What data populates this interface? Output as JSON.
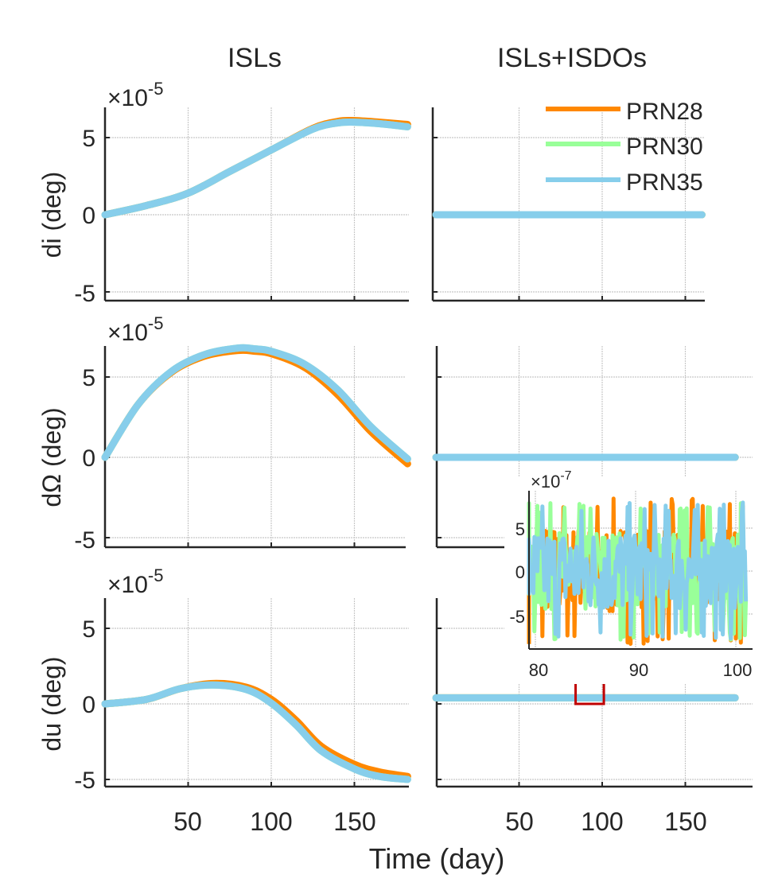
{
  "chart_data": [
    {
      "type": "line",
      "panel": "row1-left",
      "title": "ISLs",
      "xlabel": "",
      "ylabel": "di (deg)",
      "y_exponent_label": "×10^-5",
      "xlim": [
        0,
        182
      ],
      "ylim": [
        -5.2,
        7
      ],
      "yticks": [
        -5,
        0,
        5
      ],
      "xticks": [
        50,
        100,
        150
      ],
      "show_xtick_labels": false,
      "grid": true,
      "series": [
        {
          "name": "PRN28",
          "x": [
            0,
            25,
            50,
            75,
            100,
            125,
            140,
            150,
            165,
            182
          ],
          "values": [
            0,
            0.6,
            1.4,
            2.8,
            4.2,
            5.6,
            6.05,
            6.1,
            6.0,
            5.85
          ]
        },
        {
          "name": "PRN30",
          "x": [
            0,
            25,
            50,
            75,
            100,
            125,
            140,
            150,
            165,
            182
          ],
          "values": [
            0,
            0.6,
            1.4,
            2.8,
            4.2,
            5.55,
            5.95,
            6.0,
            5.9,
            5.7
          ]
        },
        {
          "name": "PRN35",
          "x": [
            0,
            25,
            50,
            75,
            100,
            125,
            140,
            150,
            165,
            182
          ],
          "values": [
            0,
            0.6,
            1.4,
            2.8,
            4.2,
            5.55,
            5.95,
            6.0,
            5.9,
            5.7
          ]
        }
      ]
    },
    {
      "type": "line",
      "panel": "row1-right",
      "title": "ISLs+ISDOs",
      "ylabel": "",
      "xlim": [
        0,
        182
      ],
      "ylim": [
        -5.2,
        7
      ],
      "yticks": [
        -5,
        0,
        5
      ],
      "xticks": [
        50,
        100,
        150
      ],
      "show_xtick_labels": false,
      "show_ytick_labels": false,
      "grid": true,
      "series": [
        {
          "name": "PRN28",
          "x": [
            0,
            160
          ],
          "values": [
            0,
            0
          ]
        },
        {
          "name": "PRN30",
          "x": [
            0,
            160
          ],
          "values": [
            0,
            0
          ]
        },
        {
          "name": "PRN35",
          "x": [
            0,
            160
          ],
          "values": [
            0,
            0
          ]
        }
      ]
    },
    {
      "type": "line",
      "panel": "row2-left",
      "ylabel": "dΩ (deg)",
      "y_exponent_label": "×10^-5",
      "xlim": [
        0,
        182
      ],
      "ylim": [
        -5.2,
        7
      ],
      "yticks": [
        -5,
        0,
        5
      ],
      "xticks": [
        50,
        100,
        150
      ],
      "show_xtick_labels": false,
      "grid": true,
      "series": [
        {
          "name": "PRN28",
          "x": [
            0,
            20,
            40,
            60,
            80,
            90,
            100,
            120,
            140,
            160,
            182
          ],
          "values": [
            0,
            3.3,
            5.3,
            6.3,
            6.65,
            6.6,
            6.45,
            5.6,
            3.9,
            1.6,
            -0.4
          ]
        },
        {
          "name": "PRN30",
          "x": [
            0,
            20,
            40,
            60,
            80,
            90,
            100,
            120,
            140,
            160,
            182
          ],
          "values": [
            0,
            3.3,
            5.35,
            6.4,
            6.8,
            6.75,
            6.6,
            5.8,
            4.2,
            1.9,
            -0.1
          ]
        },
        {
          "name": "PRN35",
          "x": [
            0,
            20,
            40,
            60,
            80,
            90,
            100,
            120,
            140,
            160,
            182
          ],
          "values": [
            0,
            3.3,
            5.35,
            6.4,
            6.8,
            6.75,
            6.6,
            5.8,
            4.2,
            1.9,
            -0.1
          ]
        }
      ]
    },
    {
      "type": "line",
      "panel": "row2-right",
      "ylabel": "",
      "xlim": [
        0,
        182
      ],
      "ylim": [
        -5.2,
        7
      ],
      "yticks": [
        -5,
        0,
        5
      ],
      "xticks": [
        50,
        100,
        150
      ],
      "show_xtick_labels": false,
      "show_ytick_labels": false,
      "grid": true,
      "series": [
        {
          "name": "PRN28",
          "x": [
            0,
            180
          ],
          "values": [
            0,
            0
          ]
        },
        {
          "name": "PRN30",
          "x": [
            0,
            180
          ],
          "values": [
            0,
            0
          ]
        },
        {
          "name": "PRN35",
          "x": [
            0,
            180
          ],
          "values": [
            0,
            0
          ]
        }
      ]
    },
    {
      "type": "line",
      "panel": "row3-left",
      "xlabel": "",
      "ylabel": "du (deg)",
      "y_exponent_label": "×10^-5",
      "xlim": [
        0,
        182
      ],
      "ylim": [
        -5.2,
        7
      ],
      "yticks": [
        -5,
        0,
        5
      ],
      "xticks": [
        50,
        100,
        150
      ],
      "xtick_labels": [
        "50",
        "100",
        "150"
      ],
      "grid": true,
      "series": [
        {
          "name": "PRN28",
          "x": [
            0,
            25,
            45,
            65,
            85,
            100,
            115,
            130,
            150,
            165,
            182
          ],
          "values": [
            0,
            0.3,
            1.0,
            1.35,
            1.1,
            0.3,
            -1.1,
            -2.8,
            -4.0,
            -4.5,
            -4.8
          ]
        },
        {
          "name": "PRN30",
          "x": [
            0,
            25,
            45,
            65,
            85,
            100,
            115,
            130,
            150,
            165,
            182
          ],
          "values": [
            0,
            0.3,
            1.0,
            1.25,
            0.95,
            0.05,
            -1.4,
            -3.1,
            -4.3,
            -4.8,
            -5.0
          ]
        },
        {
          "name": "PRN35",
          "x": [
            0,
            25,
            45,
            65,
            85,
            100,
            115,
            130,
            150,
            165,
            182
          ],
          "values": [
            0,
            0.3,
            1.0,
            1.25,
            0.95,
            0.05,
            -1.4,
            -3.1,
            -4.3,
            -4.8,
            -5.0
          ]
        }
      ]
    },
    {
      "type": "line",
      "panel": "row3-right",
      "xlim": [
        0,
        182
      ],
      "ylim": [
        -5.2,
        7
      ],
      "yticks": [
        -5,
        0,
        5
      ],
      "xticks": [
        50,
        100,
        150
      ],
      "xtick_labels": [
        "50",
        "100",
        "150"
      ],
      "show_ytick_labels": false,
      "grid": true,
      "highlight_box": {
        "x_range": [
          84,
          101
        ],
        "color": "#c00000"
      },
      "series": [
        {
          "name": "PRN28",
          "x": [
            0,
            180
          ],
          "values": [
            0.4,
            0.4
          ]
        },
        {
          "name": "PRN30",
          "x": [
            0,
            180
          ],
          "values": [
            0.4,
            0.4
          ]
        },
        {
          "name": "PRN35",
          "x": [
            0,
            180
          ],
          "values": [
            0.4,
            0.4
          ]
        }
      ]
    },
    {
      "type": "line",
      "panel": "inset-zoom",
      "y_exponent_label": "×10^-7",
      "xlim": [
        79,
        101
      ],
      "ylim": [
        -8.5,
        10
      ],
      "yticks": [
        -5,
        0,
        5
      ],
      "xticks": [
        80,
        90,
        100
      ],
      "xtick_labels": [
        "80",
        "90",
        "100"
      ],
      "ytick_labels": [
        "-5",
        "0",
        "5"
      ],
      "grid": true,
      "description": "High-frequency noise around zero, amplitude roughly ±5 to ±8 ×10^-7 for all three PRNs",
      "noise_amplitude": {
        "PRN28": 8.5,
        "PRN30": 8.0,
        "PRN35": 8.0
      }
    }
  ],
  "legend": {
    "placement": "top-right of row1-right panel",
    "entries": [
      {
        "name": "PRN28",
        "color": "#ff8800"
      },
      {
        "name": "PRN30",
        "color": "#99ff99"
      },
      {
        "name": "PRN35",
        "color": "#87ceeb"
      }
    ]
  },
  "labels": {
    "col_left_title": "ISLs",
    "col_right_title": "ISLs+ISDOs",
    "xlabel": "Time (day)",
    "ylabel_row1": "di (deg)",
    "ylabel_row2": "dΩ (deg)",
    "ylabel_row3": "du (deg)",
    "exp_times": "×10",
    "exp_main": "-5",
    "exp_inset": "-7",
    "tick_neg5": "-5",
    "tick_0": "0",
    "tick_5": "5",
    "tick_50": "50",
    "tick_100": "100",
    "tick_150": "150",
    "tick_80": "80",
    "tick_90": "90",
    "inset_tick_100": "100"
  },
  "colors": {
    "PRN28": "#ff8800",
    "PRN30": "#99ff99",
    "PRN35": "#87ceeb",
    "highlight_box": "#c00000",
    "arrow": "#4472c4"
  }
}
